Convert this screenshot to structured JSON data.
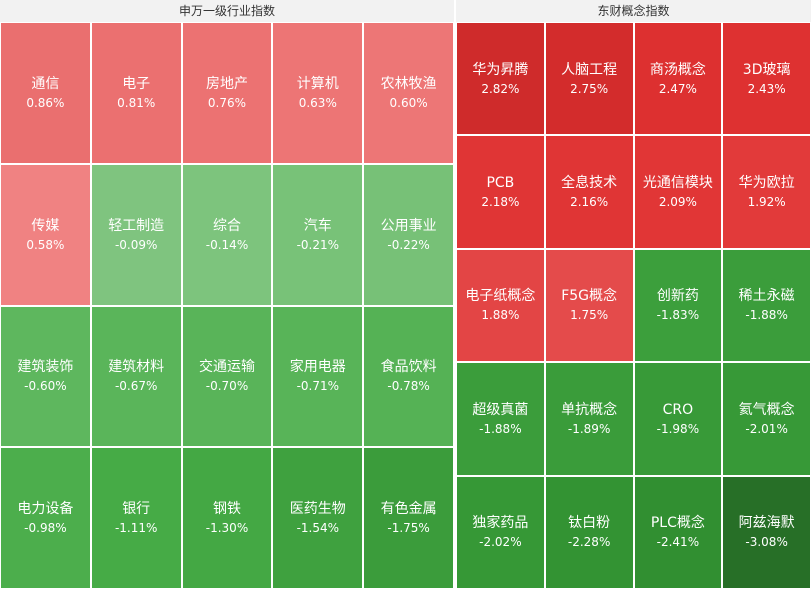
{
  "chart_data": [
    {
      "type": "heatmap",
      "title": "申万一级行业指数",
      "columns": 5,
      "rows": 4,
      "items": [
        {
          "name": "通信",
          "value": "0.86%",
          "color": "#ea6f6f"
        },
        {
          "name": "电子",
          "value": "0.81%",
          "color": "#eb7070"
        },
        {
          "name": "房地产",
          "value": "0.76%",
          "color": "#ec7272"
        },
        {
          "name": "计算机",
          "value": "0.63%",
          "color": "#ed7575"
        },
        {
          "name": "农林牧渔",
          "value": "0.60%",
          "color": "#ed7676"
        },
        {
          "name": "传媒",
          "value": "0.58%",
          "color": "#f08282"
        },
        {
          "name": "轻工制造",
          "value": "-0.09%",
          "color": "#7fc47f"
        },
        {
          "name": "综合",
          "value": "-0.14%",
          "color": "#7dc47d"
        },
        {
          "name": "汽车",
          "value": "-0.21%",
          "color": "#78c278"
        },
        {
          "name": "公用事业",
          "value": "-0.22%",
          "color": "#77c177"
        },
        {
          "name": "建筑装饰",
          "value": "-0.60%",
          "color": "#5eb75e"
        },
        {
          "name": "建筑材料",
          "value": "-0.67%",
          "color": "#5ab55a"
        },
        {
          "name": "交通运输",
          "value": "-0.70%",
          "color": "#59b459"
        },
        {
          "name": "家用电器",
          "value": "-0.71%",
          "color": "#58b458"
        },
        {
          "name": "食品饮料",
          "value": "-0.78%",
          "color": "#55b255"
        },
        {
          "name": "电力设备",
          "value": "-0.98%",
          "color": "#4cae4c"
        },
        {
          "name": "银行",
          "value": "-1.11%",
          "color": "#46ab46"
        },
        {
          "name": "钢铁",
          "value": "-1.30%",
          "color": "#44a844"
        },
        {
          "name": "医药生物",
          "value": "-1.54%",
          "color": "#3fa13f"
        },
        {
          "name": "有色金属",
          "value": "-1.75%",
          "color": "#3b9c3b"
        }
      ]
    },
    {
      "type": "heatmap",
      "title": "东财概念指数",
      "columns": 4,
      "rows": 5,
      "items": [
        {
          "name": "华为昇腾",
          "value": "2.82%",
          "color": "#cf2b2b"
        },
        {
          "name": "人脑工程",
          "value": "2.75%",
          "color": "#d32c2c"
        },
        {
          "name": "商汤概念",
          "value": "2.47%",
          "color": "#dd3030"
        },
        {
          "name": "3D玻璃",
          "value": "2.43%",
          "color": "#de3131"
        },
        {
          "name": "PCB",
          "value": "2.18%",
          "color": "#e03535"
        },
        {
          "name": "全息技术",
          "value": "2.16%",
          "color": "#e03535"
        },
        {
          "name": "光通信模块",
          "value": "2.09%",
          "color": "#e13636"
        },
        {
          "name": "华为欧拉",
          "value": "1.92%",
          "color": "#e23a3a"
        },
        {
          "name": "电子纸概念",
          "value": "1.88%",
          "color": "#e34545"
        },
        {
          "name": "F5G概念",
          "value": "1.75%",
          "color": "#e44b4b"
        },
        {
          "name": "创新药",
          "value": "-1.83%",
          "color": "#3c9f3c"
        },
        {
          "name": "稀土永磁",
          "value": "-1.88%",
          "color": "#3b9d3b"
        },
        {
          "name": "超级真菌",
          "value": "-1.88%",
          "color": "#3b9d3b"
        },
        {
          "name": "单抗概念",
          "value": "-1.89%",
          "color": "#3a9c3a"
        },
        {
          "name": "CRO",
          "value": "-1.98%",
          "color": "#389a38"
        },
        {
          "name": "氦气概念",
          "value": "-2.01%",
          "color": "#379937"
        },
        {
          "name": "独家药品",
          "value": "-2.02%",
          "color": "#369836"
        },
        {
          "name": "钛白粉",
          "value": "-2.28%",
          "color": "#339333"
        },
        {
          "name": "PLC概念",
          "value": "-2.41%",
          "color": "#318f31"
        },
        {
          "name": "阿兹海默",
          "value": "-3.08%",
          "color": "#276f27"
        }
      ]
    }
  ]
}
